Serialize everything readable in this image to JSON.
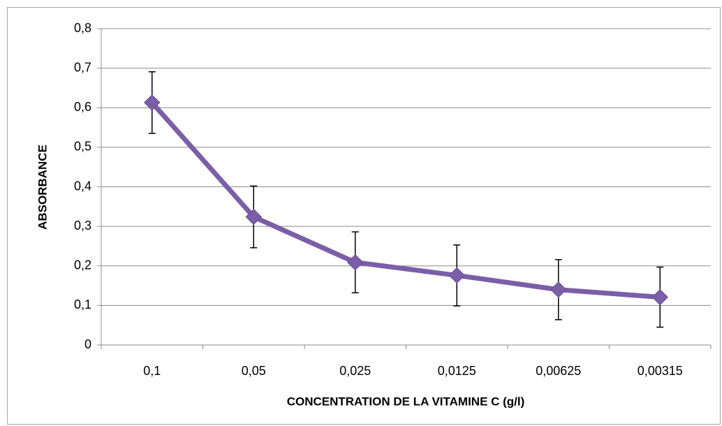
{
  "chart_data": {
    "type": "line",
    "x_label": "CONCENTRATION DE LA VITAMINE C (g/l)",
    "y_label": "ABSORBANCE",
    "categories": [
      "0,1",
      "0,05",
      "0,025",
      "0,0125",
      "0,00625",
      "0,00315"
    ],
    "values": [
      0.613,
      0.324,
      0.209,
      0.176,
      0.14,
      0.121
    ],
    "errors": [
      0.078,
      0.078,
      0.077,
      0.077,
      0.076,
      0.076
    ],
    "color": "#7b5ea7",
    "ylim": [
      0,
      0.8
    ],
    "yticks": [
      0,
      {
        "value": 0.1,
        "label": "0,1"
      },
      {
        "value": 0.2,
        "label": "0,2"
      },
      {
        "value": 0.3,
        "label": "0,3"
      },
      {
        "value": 0.4,
        "label": "0,4"
      },
      {
        "value": 0.5,
        "label": "0,5"
      },
      {
        "value": 0.6,
        "label": "0,6"
      },
      {
        "value": 0.7,
        "label": "0,7"
      },
      {
        "value": 0.8,
        "label": "0,8"
      }
    ],
    "grid": true
  }
}
